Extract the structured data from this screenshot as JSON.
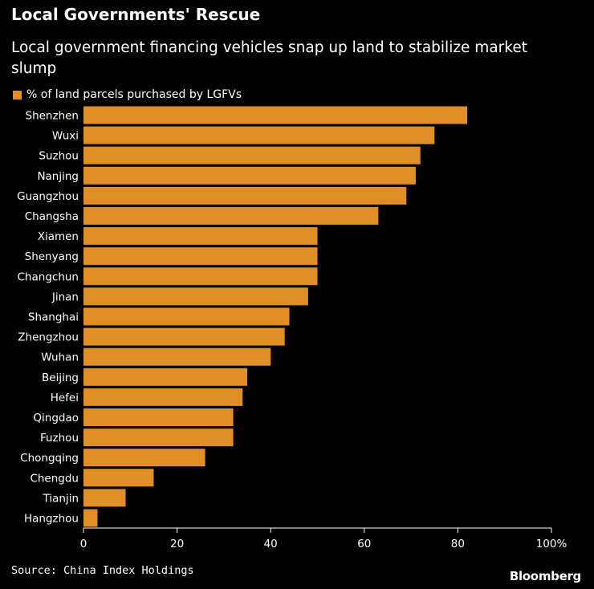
{
  "title": "Local Governments' Rescue",
  "subtitle": "Local government financing vehicles snap up land to stabilize market slump",
  "source": "Source: China Index Holdings",
  "brand": "Bloomberg",
  "colors": {
    "bar": "#e08e26",
    "background": "#000000",
    "text": "#ffffff",
    "axis": "#ffffff"
  },
  "chart_data": {
    "type": "bar",
    "orientation": "horizontal",
    "title": "Local Governments' Rescue",
    "subtitle": "Local government financing vehicles snap up land to stabilize market slump",
    "legend": [
      "% of land parcels purchased by LGFVs"
    ],
    "legend_position": "top-left",
    "categories": [
      "Shenzhen",
      "Wuxi",
      "Suzhou",
      "Nanjing",
      "Guangzhou",
      "Changsha",
      "Xiamen",
      "Shenyang",
      "Changchun",
      "Jinan",
      "Shanghai",
      "Zhengzhou",
      "Wuhan",
      "Beijing",
      "Hefei",
      "Qingdao",
      "Fuzhou",
      "Chongqing",
      "Chengdu",
      "Tianjin",
      "Hangzhou"
    ],
    "series": [
      {
        "name": "% of land parcels purchased by LGFVs",
        "values": [
          82,
          75,
          72,
          71,
          69,
          63,
          50,
          50,
          50,
          48,
          44,
          43,
          40,
          35,
          34,
          32,
          32,
          26,
          15,
          9,
          3
        ]
      }
    ],
    "xlim": [
      0,
      100
    ],
    "xticks": [
      0,
      20,
      40,
      60,
      80,
      100
    ],
    "xtick_labels": [
      "0",
      "20",
      "40",
      "60",
      "80",
      "100%"
    ],
    "xlabel": "",
    "ylabel": "",
    "grid": false
  }
}
